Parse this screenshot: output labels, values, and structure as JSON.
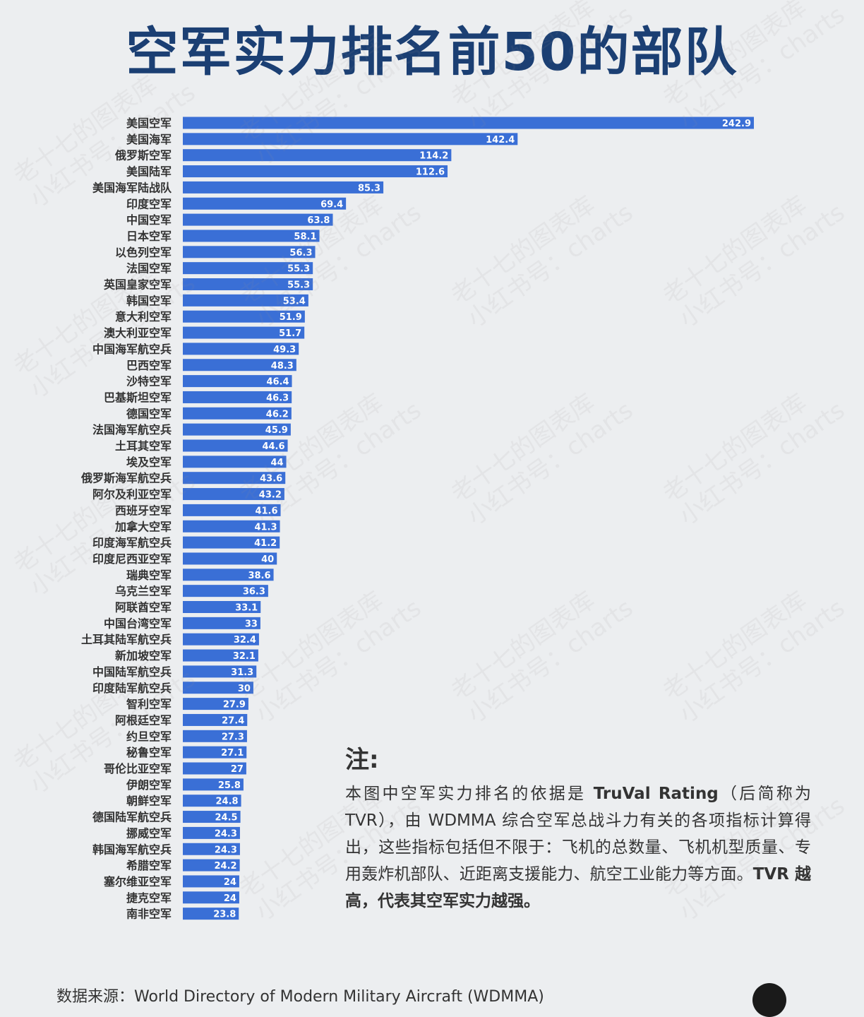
{
  "title": "空军实力排名前50的部队",
  "chart_data": {
    "type": "bar",
    "orientation": "horizontal",
    "categories": [
      "美国空军",
      "美国海军",
      "俄罗斯空军",
      "美国陆军",
      "美国海军陆战队",
      "印度空军",
      "中国空军",
      "日本空军",
      "以色列空军",
      "法国空军",
      "英国皇家空军",
      "韩国空军",
      "意大利空军",
      "澳大利亚空军",
      "中国海军航空兵",
      "巴西空军",
      "沙特空军",
      "巴基斯坦空军",
      "德国空军",
      "法国海军航空兵",
      "土耳其空军",
      "埃及空军",
      "俄罗斯海军航空兵",
      "阿尔及利亚空军",
      "西班牙空军",
      "加拿大空军",
      "印度海军航空兵",
      "印度尼西亚空军",
      "瑞典空军",
      "乌克兰空军",
      "阿联酋空军",
      "中国台湾空军",
      "土耳其陆军航空兵",
      "新加坡空军",
      "中国陆军航空兵",
      "印度陆军航空兵",
      "智利空军",
      "阿根廷空军",
      "约旦空军",
      "秘鲁空军",
      "哥伦比亚空军",
      "伊朗空军",
      "朝鲜空军",
      "德国陆军航空兵",
      "挪威空军",
      "韩国海军航空兵",
      "希腊空军",
      "塞尔维亚空军",
      "捷克空军",
      "南非空军"
    ],
    "values": [
      242.9,
      142.4,
      114.2,
      112.6,
      85.3,
      69.4,
      63.8,
      58.1,
      56.3,
      55.3,
      55.3,
      53.4,
      51.9,
      51.7,
      49.3,
      48.3,
      46.4,
      46.3,
      46.2,
      45.9,
      44.6,
      44,
      43.6,
      43.2,
      41.6,
      41.3,
      41.2,
      40,
      38.6,
      36.3,
      33.1,
      33,
      32.4,
      32.1,
      31.3,
      30,
      27.9,
      27.4,
      27.3,
      27.1,
      27,
      25.8,
      24.8,
      24.5,
      24.3,
      24.3,
      24.2,
      24,
      24,
      23.8
    ],
    "value_labels": [
      "242.9",
      "142.4",
      "114.2",
      "112.6",
      "85.3",
      "69.4",
      "63.8",
      "58.1",
      "56.3",
      "55.3",
      "55.3",
      "53.4",
      "51.9",
      "51.7",
      "49.3",
      "48.3",
      "46.4",
      "46.3",
      "46.2",
      "45.9",
      "44.6",
      "44",
      "43.6",
      "43.2",
      "41.6",
      "41.3",
      "41.2",
      "40",
      "38.6",
      "36.3",
      "33.1",
      "33",
      "32.4",
      "32.1",
      "31.3",
      "30",
      "27.9",
      "27.4",
      "27.3",
      "27.1",
      "27",
      "25.8",
      "24.8",
      "24.5",
      "24.3",
      "24.3",
      "24.2",
      "24",
      "24",
      "23.8"
    ],
    "xlim": [
      0,
      242.9
    ],
    "color": "#3a6fd6",
    "grid": false,
    "legend": "none"
  },
  "note": {
    "heading": "注:",
    "line1_a": "本图中空军实力排名的依据是 ",
    "line1_b": "TruVal Rating",
    "line1_c": "（后简称为TVR），由 WDMMA 综合空军总战斗力有关的各项指标计算得出，这些指标包括但不限于：飞机的总数量、飞机机型质量、专用轰炸机部队、近距离支援能力、航空工业能力等方面。",
    "line1_d": "TVR 越高，代表其空军实力越强。"
  },
  "footer": {
    "source_text": "数据来源：World Directory of Modern Military Aircraft (WDMMA)"
  },
  "watermark": {
    "line1": "老十七的图表库",
    "line2": "小红书号：charts"
  },
  "colors": {
    "title": "#1b3f73",
    "bar": "#3a6fd6",
    "background": "#eceef0"
  }
}
